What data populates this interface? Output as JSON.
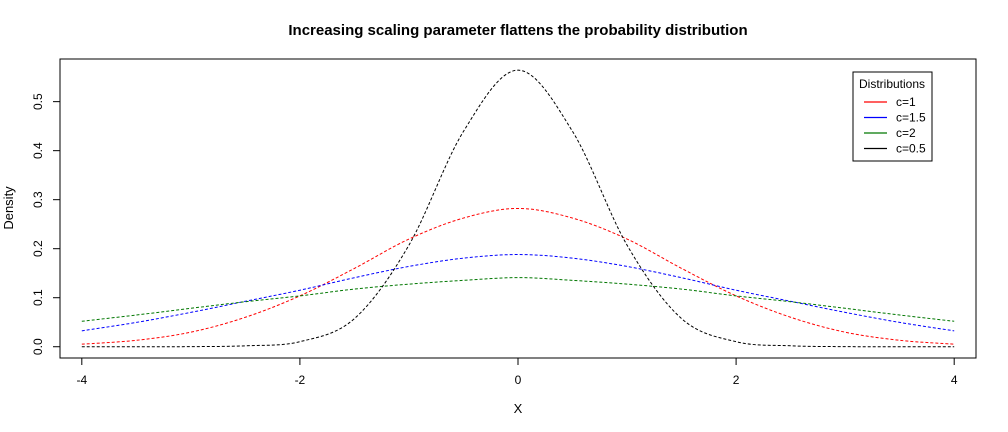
{
  "chart_data": {
    "type": "line",
    "title": "Increasing scaling parameter flattens the probability distribution",
    "xlabel": "X",
    "ylabel": "Density",
    "xlim": [
      -4.2,
      4.2
    ],
    "ylim": [
      -0.023,
      0.587
    ],
    "xticks": [
      -4,
      -2,
      0,
      2,
      4
    ],
    "xtick_labels": [
      "-4",
      "-2",
      "0",
      "2",
      "4"
    ],
    "yticks": [
      0.0,
      0.1,
      0.2,
      0.3,
      0.4,
      0.5
    ],
    "ytick_labels": [
      "0.0",
      "0.1",
      "0.2",
      "0.3",
      "0.4",
      "0.5"
    ],
    "grid": false,
    "line_style": "dashed",
    "x": [
      -4.0,
      -3.5,
      -3.0,
      -2.5,
      -2.0,
      -1.5,
      -1.0,
      -0.5,
      0.0,
      0.5,
      1.0,
      1.5,
      2.0,
      2.5,
      3.0,
      3.5,
      4.0
    ],
    "series": [
      {
        "name": "c=1",
        "color": "#ff0000",
        "values": [
          0.0052,
          0.0131,
          0.0297,
          0.0601,
          0.1038,
          0.1598,
          0.2197,
          0.2625,
          0.2821,
          0.2625,
          0.2197,
          0.1598,
          0.1038,
          0.0601,
          0.0297,
          0.0131,
          0.0052
        ]
      },
      {
        "name": "c=1.5",
        "color": "#0000ff",
        "values": [
          0.0324,
          0.0496,
          0.0701,
          0.0927,
          0.1153,
          0.1408,
          0.1638,
          0.1807,
          0.1881,
          0.1807,
          0.1638,
          0.1408,
          0.1153,
          0.0927,
          0.0701,
          0.0496,
          0.0324
        ]
      },
      {
        "name": "c=2",
        "color": "#007700",
        "values": [
          0.0519,
          0.0647,
          0.0784,
          0.0918,
          0.1037,
          0.1176,
          0.1277,
          0.1354,
          0.141,
          0.1354,
          0.1277,
          0.1176,
          0.1037,
          0.0918,
          0.0784,
          0.0647,
          0.0519
        ]
      },
      {
        "name": "c=0.5",
        "color": "#000000",
        "values": [
          0.0,
          0.0,
          0.0002,
          0.0019,
          0.0103,
          0.0574,
          0.2073,
          0.4393,
          0.5642,
          0.4393,
          0.2073,
          0.0574,
          0.0103,
          0.0019,
          0.0002,
          0.0,
          0.0
        ]
      }
    ],
    "legend": {
      "title": "Distributions",
      "position": "top-right"
    }
  }
}
